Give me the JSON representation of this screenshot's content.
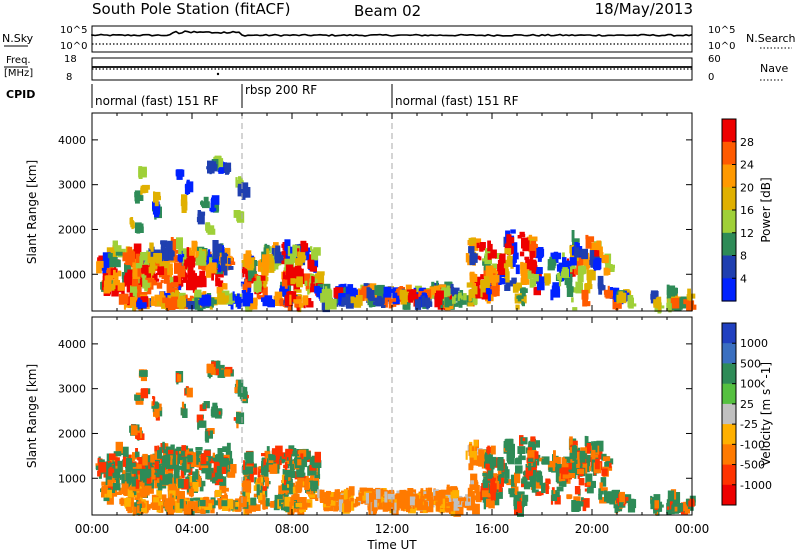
{
  "header": {
    "station": "South Pole Station (fitACF)",
    "beam": "Beam 02",
    "date": "18/May/2013"
  },
  "strips": {
    "nsky": {
      "label": "N.Sky",
      "left_ticks": [
        "10^5",
        "10^0"
      ],
      "right_ticks": [
        "10^5",
        "10^0"
      ],
      "right_label": "N.Search"
    },
    "freq": {
      "label_line1": "Freq.",
      "label_line2": "[MHz]",
      "left_ticks": [
        "18",
        "8"
      ],
      "right_ticks": [
        "60",
        "0"
      ],
      "right_label": "Nave"
    },
    "cpid": {
      "label": "CPID",
      "segments": [
        "normal (fast) 151 RF",
        "rbsp 200 RF",
        "normal (fast) 151 RF"
      ]
    }
  },
  "xaxis": {
    "title": "Time UT",
    "ticks": [
      "00:00",
      "04:00",
      "08:00",
      "12:00",
      "16:00",
      "20:00",
      "00:00"
    ]
  },
  "chart_data": [
    {
      "type": "heatmap",
      "title": "",
      "xlabel": "Time UT",
      "ylabel": "Slant Range [km]",
      "x_range_hours": [
        0,
        24
      ],
      "ylim": [
        180,
        4600
      ],
      "yticks": [
        "1000",
        "2000",
        "3000",
        "4000"
      ],
      "colorbar": {
        "label": "Power [dB]",
        "ticks": [
          "28",
          "24",
          "20",
          "16",
          "12",
          "8",
          "4"
        ],
        "colors": [
          "#ee0000",
          "#ff5a00",
          "#ff9900",
          "#e0b000",
          "#9fd038",
          "#2e8b57",
          "#1f3fb0",
          "#0022ff"
        ]
      },
      "regions_description_values": [
        {
          "t_start": 0.0,
          "t_end": 5.0,
          "r_min": 500,
          "r_max": 1600
        },
        {
          "t_start": 6.0,
          "t_end": 9.0,
          "r_min": 600,
          "r_max": 1500
        },
        {
          "t_start": 9.0,
          "t_end": 15.0,
          "r_min": 300,
          "r_max": 700
        },
        {
          "t_start": 15.0,
          "t_end": 20.5,
          "r_min": 300,
          "r_max": 1800
        }
      ]
    },
    {
      "type": "heatmap",
      "title": "",
      "xlabel": "Time UT",
      "ylabel": "Slant Range [km]",
      "x_range_hours": [
        0,
        24
      ],
      "ylim": [
        180,
        4600
      ],
      "yticks": [
        "1000",
        "2000",
        "3000",
        "4000"
      ],
      "colorbar": {
        "label": "Velocity [m s^-1]",
        "ticks": [
          "1000",
          "500",
          "100",
          "25",
          "-25",
          "-100",
          "-500",
          "-1000"
        ],
        "colors": [
          "#2040c0",
          "#3a6fc0",
          "#2e8b57",
          "#55c040",
          "#c0c0c0",
          "#ffb000",
          "#ff7a00",
          "#ff3300",
          "#ee0000"
        ]
      }
    }
  ]
}
